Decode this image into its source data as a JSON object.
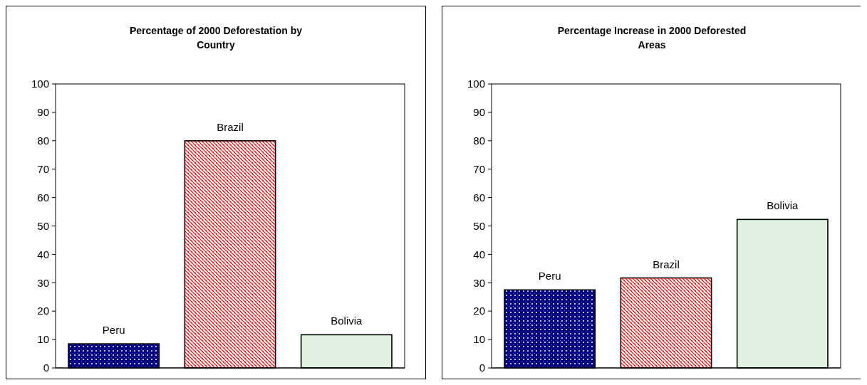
{
  "chart_data": [
    {
      "type": "bar",
      "title": "Percentage of 2000 Deforestation by Country",
      "categories": [
        "Peru",
        "Brazil",
        "Bolivia"
      ],
      "values": [
        8.5,
        80,
        11.7
      ],
      "colors": [
        "#000080",
        "#ff0000",
        "#339933"
      ],
      "ylim": [
        0,
        100
      ],
      "yticks": [
        0,
        10,
        20,
        30,
        40,
        50,
        60,
        70,
        80,
        90,
        100
      ],
      "grid": false
    },
    {
      "type": "bar",
      "title": "Percentage Increase in 2000 Deforested Areas",
      "categories": [
        "Peru",
        "Brazil",
        "Bolivia"
      ],
      "values": [
        27.5,
        31.7,
        52.3
      ],
      "colors": [
        "#000080",
        "#ff0000",
        "#339933"
      ],
      "ylim": [
        0,
        100
      ],
      "yticks": [
        0,
        10,
        20,
        30,
        40,
        50,
        60,
        70,
        80,
        90,
        100
      ],
      "grid": false
    }
  ]
}
